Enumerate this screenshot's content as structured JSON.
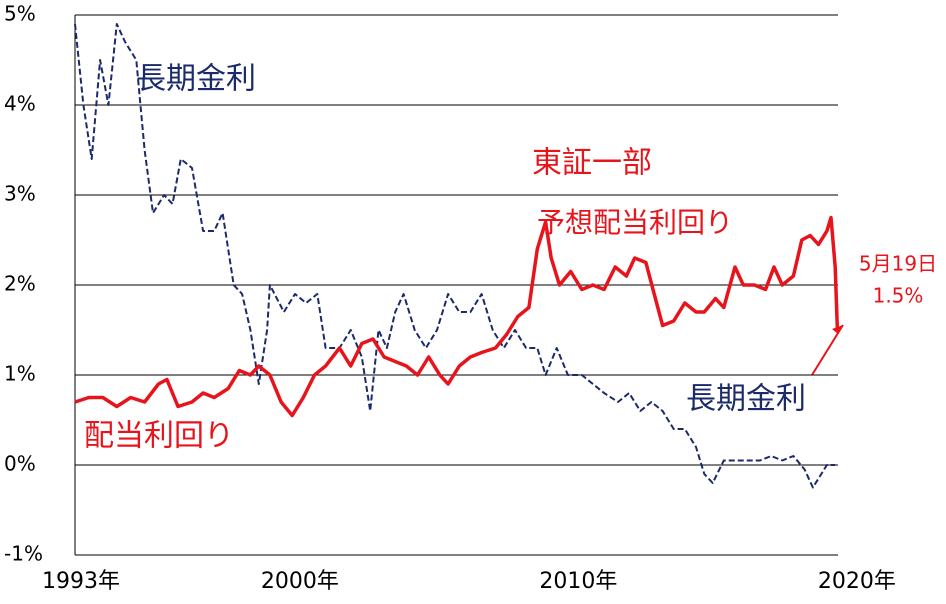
{
  "chart_data": {
    "type": "line",
    "xlim": [
      1993,
      2020.4
    ],
    "xticks": [
      {
        "value": 1993,
        "label": "1993年"
      },
      {
        "value": 2000,
        "label": "2000年"
      },
      {
        "value": 2010,
        "label": "2010年"
      },
      {
        "value": 2020,
        "label": "2020年"
      }
    ],
    "ylim": [
      -1,
      5
    ],
    "yticks": [
      {
        "value": -1,
        "label": "-1%"
      },
      {
        "value": 0,
        "label": "0%"
      },
      {
        "value": 1,
        "label": "1%"
      },
      {
        "value": 2,
        "label": "2%"
      },
      {
        "value": 3,
        "label": "3%"
      },
      {
        "value": 4,
        "label": "4%"
      },
      {
        "value": 5,
        "label": "5%"
      }
    ],
    "grid": true,
    "series": [
      {
        "name": "長期金利",
        "color": "#1b2a6b",
        "dashed": true,
        "x": [
          1993.0,
          1993.3,
          1993.6,
          1993.9,
          1994.2,
          1994.5,
          1994.8,
          1995.2,
          1995.5,
          1995.8,
          1996.2,
          1996.5,
          1996.8,
          1997.2,
          1997.6,
          1998.0,
          1998.3,
          1998.7,
          1999.0,
          1999.3,
          1999.6,
          1999.9,
          2000.0,
          2000.5,
          2000.9,
          2001.3,
          2001.7,
          2002.0,
          2002.5,
          2002.9,
          2003.3,
          2003.6,
          2003.9,
          2004.2,
          2004.5,
          2004.8,
          2005.2,
          2005.6,
          2006.0,
          2006.4,
          2006.8,
          2007.2,
          2007.6,
          2008.0,
          2008.4,
          2008.8,
          2009.2,
          2009.6,
          2009.9,
          2010.3,
          2010.7,
          2011.2,
          2011.6,
          2012.0,
          2012.5,
          2012.9,
          2013.3,
          2013.7,
          2014.1,
          2014.5,
          2014.9,
          2015.3,
          2015.6,
          2015.9,
          2016.3,
          2016.7,
          2017.1,
          2017.6,
          2018.0,
          2018.4,
          2018.8,
          2019.2,
          2019.5,
          2019.8,
          2020.0,
          2020.3
        ],
        "values": [
          4.9,
          4.0,
          3.4,
          4.5,
          4.0,
          4.9,
          4.7,
          4.5,
          3.5,
          2.8,
          3.0,
          2.9,
          3.4,
          3.3,
          2.6,
          2.6,
          2.8,
          2.0,
          1.9,
          1.5,
          0.9,
          1.5,
          2.0,
          1.7,
          1.9,
          1.8,
          1.9,
          1.3,
          1.3,
          1.5,
          1.2,
          0.6,
          1.5,
          1.3,
          1.7,
          1.9,
          1.5,
          1.3,
          1.5,
          1.9,
          1.7,
          1.7,
          1.9,
          1.5,
          1.3,
          1.5,
          1.3,
          1.3,
          1.0,
          1.3,
          1.0,
          1.0,
          0.9,
          0.8,
          0.7,
          0.8,
          0.6,
          0.7,
          0.6,
          0.4,
          0.4,
          0.2,
          -0.1,
          -0.2,
          0.05,
          0.05,
          0.05,
          0.05,
          0.1,
          0.05,
          0.1,
          -0.05,
          -0.25,
          -0.1,
          0.0,
          0.0
        ]
      },
      {
        "name": "配当利回り",
        "color": "#e8141c",
        "dashed": false,
        "x": [
          1993.0,
          1993.5,
          1994.0,
          1994.5,
          1995.0,
          1995.5,
          1996.0,
          1996.3,
          1996.7,
          1997.2,
          1997.6,
          1998.0,
          1998.5,
          1998.9,
          1999.3,
          1999.6,
          2000.0,
          2000.4,
          2000.8,
          2001.2,
          2001.6,
          2002.0,
          2002.5,
          2002.9,
          2003.3,
          2003.7,
          2004.1,
          2004.5,
          2004.9,
          2005.3,
          2005.7,
          2006.1,
          2006.4,
          2006.8,
          2007.2,
          2007.6,
          2008.1,
          2008.5,
          2008.9,
          2009.3,
          2009.6,
          2009.9,
          2010.1,
          2010.4,
          2010.8,
          2011.2,
          2011.6,
          2012.0,
          2012.4,
          2012.8,
          2013.1,
          2013.5,
          2013.8,
          2014.1,
          2014.5,
          2014.9,
          2015.3,
          2015.6,
          2016.0,
          2016.3,
          2016.7,
          2017.0,
          2017.4,
          2017.8,
          2018.1,
          2018.4,
          2018.8,
          2019.1,
          2019.4,
          2019.7,
          2020.0,
          2020.15,
          2020.3,
          2020.38
        ],
        "values": [
          0.7,
          0.75,
          0.75,
          0.65,
          0.75,
          0.7,
          0.9,
          0.95,
          0.65,
          0.7,
          0.8,
          0.75,
          0.85,
          1.05,
          1.0,
          1.1,
          1.0,
          0.7,
          0.55,
          0.75,
          1.0,
          1.1,
          1.3,
          1.1,
          1.35,
          1.4,
          1.2,
          1.15,
          1.1,
          1.0,
          1.2,
          1.0,
          0.9,
          1.1,
          1.2,
          1.25,
          1.3,
          1.45,
          1.65,
          1.75,
          2.4,
          2.7,
          2.3,
          2.0,
          2.15,
          1.95,
          2.0,
          1.95,
          2.2,
          2.1,
          2.3,
          2.25,
          1.9,
          1.55,
          1.6,
          1.8,
          1.7,
          1.7,
          1.85,
          1.75,
          2.2,
          2.0,
          2.0,
          1.95,
          2.2,
          2.0,
          2.1,
          2.5,
          2.55,
          2.45,
          2.6,
          2.75,
          2.2,
          1.5
        ]
      }
    ],
    "annotations": [
      "長期金利",
      "東証一部",
      "予想配当利回り",
      "5月19日",
      "1.5%"
    ]
  }
}
